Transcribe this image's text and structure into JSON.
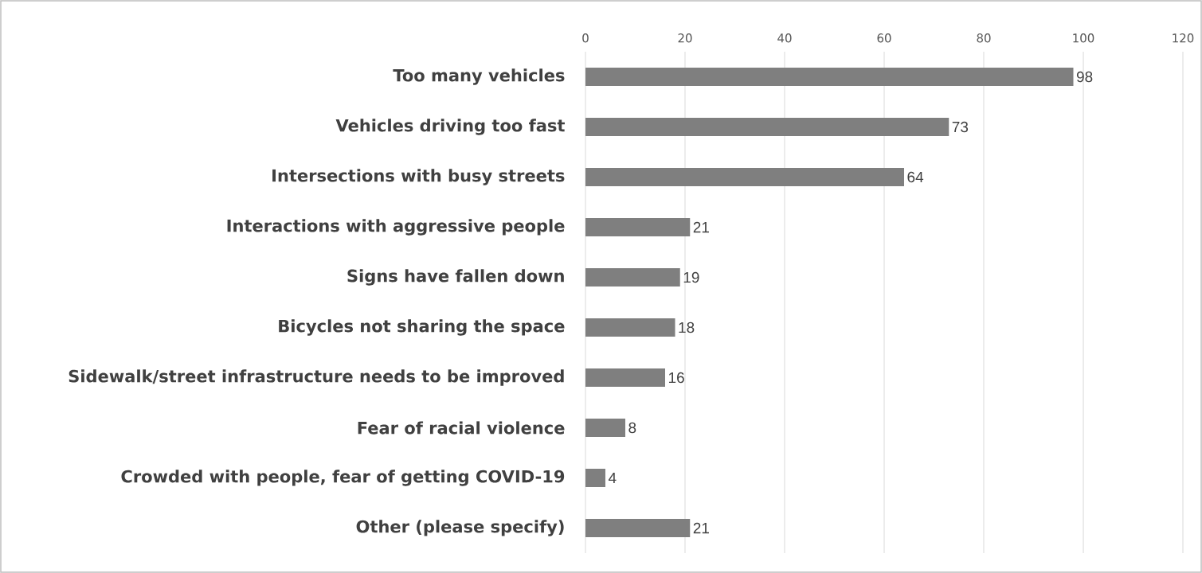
{
  "chart_data": {
    "type": "bar",
    "orientation": "horizontal",
    "categories": [
      "Too many vehicles",
      "Vehicles driving too fast",
      "Intersections with busy streets",
      "Interactions with aggressive people",
      "Signs have fallen down",
      "Bicycles not sharing the space",
      "Sidewalk/street infrastructure needs to be improved",
      "Fear of racial violence",
      "Crowded with people, fear of getting COVID-19",
      "Other (please specify)"
    ],
    "values": [
      98,
      73,
      64,
      21,
      19,
      18,
      16,
      8,
      4,
      21
    ],
    "color": "#7f7f7f",
    "xlim": [
      0,
      120
    ],
    "xticks": [
      0,
      20,
      40,
      60,
      80,
      100,
      120
    ],
    "grid": "x",
    "data_labels": true
  }
}
